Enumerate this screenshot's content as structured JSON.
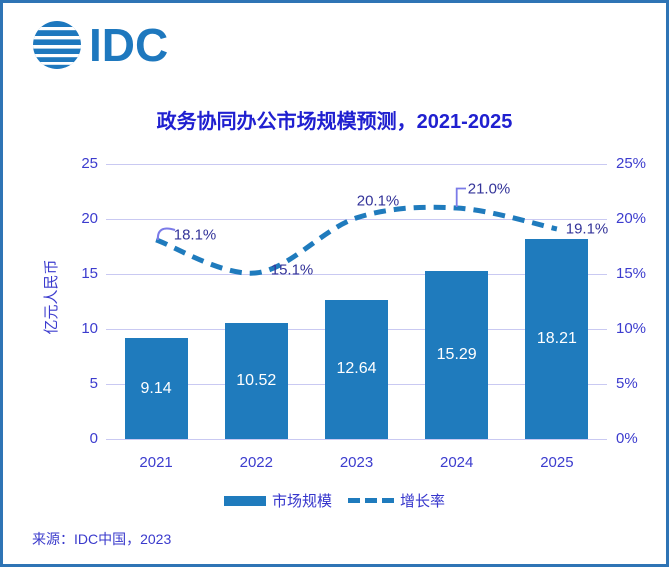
{
  "logo": {
    "text": "IDC",
    "icon": "globe-stripes-icon"
  },
  "title": "政务协同办公市场规模预测，2021-2025",
  "source": "来源：IDC中国，2023",
  "colors": {
    "bar": "#1f7bbd",
    "line": "#1f7bbd",
    "frame": "#2e74b5",
    "title_text": "#2020d0",
    "axis_text": "#3c3cce",
    "annotation_text": "#333399",
    "connector": "#7b7be8",
    "gridline": "#c9c9f2",
    "bar_value_text": "#ffffff"
  },
  "chart_data": {
    "type": "bar",
    "subtype": "bar-line-combo",
    "title": "政务协同办公市场规模预测，2021-2025",
    "categories": [
      "2021",
      "2022",
      "2023",
      "2024",
      "2025"
    ],
    "series": [
      {
        "name": "市场规模",
        "type": "bar",
        "axis": "left",
        "values": [
          9.14,
          10.52,
          12.64,
          15.29,
          18.21
        ],
        "value_labels": [
          "9.14",
          "10.52",
          "12.64",
          "15.29",
          "18.21"
        ]
      },
      {
        "name": "增长率",
        "type": "line",
        "style": "dashed",
        "axis": "right",
        "values": [
          18.1,
          15.1,
          20.1,
          21.0,
          19.1
        ],
        "value_labels": [
          "18.1%",
          "15.1%",
          "20.1%",
          "21.0%",
          "19.1%"
        ]
      }
    ],
    "left_axis": {
      "title": "亿元人民币",
      "range": [
        0,
        25
      ],
      "ticks": [
        "0",
        "5",
        "10",
        "15",
        "20",
        "25"
      ]
    },
    "right_axis": {
      "title": "",
      "range": [
        0,
        25
      ],
      "ticks": [
        "0%",
        "5%",
        "10%",
        "15%",
        "20%",
        "25%"
      ]
    },
    "grid": true,
    "legend_position": "bottom",
    "legend": [
      {
        "label": "市场规模",
        "swatch": "solid-bar"
      },
      {
        "label": "增长率",
        "swatch": "dashed-line"
      }
    ]
  }
}
